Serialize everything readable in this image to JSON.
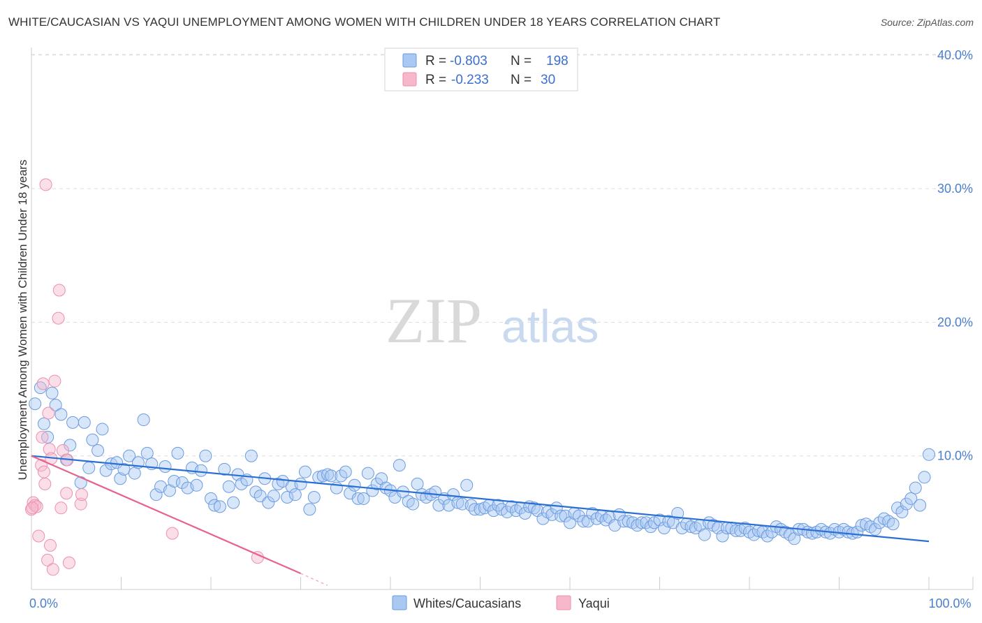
{
  "title": "WHITE/CAUCASIAN VS YAQUI UNEMPLOYMENT AMONG WOMEN WITH CHILDREN UNDER 18 YEARS CORRELATION CHART",
  "source": "Source: ZipAtlas.com",
  "watermark": {
    "zip": "ZIP",
    "atlas": "atlas"
  },
  "colors": {
    "blue_fill": "#a9c8f2",
    "blue_stroke": "#6b9be0",
    "blue_line": "#2a6fd4",
    "pink_fill": "#f7b8cb",
    "pink_stroke": "#ec8fae",
    "pink_line": "#e8628f",
    "tick_text": "#4a7fcf",
    "grid": "#dddddd"
  },
  "legend": {
    "rows": [
      {
        "r_label": "R =",
        "r_value": "-0.803",
        "n_label": "N =",
        "n_value": "198",
        "color": "blue"
      },
      {
        "r_label": "R =",
        "r_value": "-0.233",
        "n_label": "N =",
        "n_value": "30",
        "color": "pink"
      }
    ]
  },
  "bottom_legend": [
    {
      "label": "Whites/Caucasians",
      "color": "blue"
    },
    {
      "label": "Yaqui",
      "color": "pink"
    }
  ],
  "chart_data": {
    "type": "scatter",
    "title": "WHITE/CAUCASIAN VS YAQUI UNEMPLOYMENT AMONG WOMEN WITH CHILDREN UNDER 18 YEARS CORRELATION CHART",
    "xlabel": "",
    "ylabel": "Unemployment Among Women with Children Under 18 years",
    "xlim": [
      0,
      100
    ],
    "ylim": [
      0,
      42
    ],
    "x_tick_labels": [
      {
        "value": 0,
        "label": "0.0%"
      },
      {
        "value": 100,
        "label": "100.0%"
      }
    ],
    "y_tick_labels": [
      {
        "value": 10,
        "label": "10.0%"
      },
      {
        "value": 20,
        "label": "20.0%"
      },
      {
        "value": 30,
        "label": "30.0%"
      },
      {
        "value": 40,
        "label": "40.0%"
      }
    ],
    "series": [
      {
        "name": "Whites/Caucasians",
        "color": "blue",
        "trend": {
          "x": [
            0,
            100
          ],
          "y": [
            10.0,
            3.6
          ]
        },
        "points": [
          [
            0.4,
            13.9
          ],
          [
            1.0,
            15.1
          ],
          [
            1.4,
            12.4
          ],
          [
            1.8,
            11.4
          ],
          [
            2.3,
            14.7
          ],
          [
            2.7,
            13.8
          ],
          [
            3.3,
            13.1
          ],
          [
            3.9,
            9.7
          ],
          [
            4.3,
            10.8
          ],
          [
            4.6,
            12.5
          ],
          [
            5.5,
            8.0
          ],
          [
            5.9,
            12.5
          ],
          [
            6.4,
            9.1
          ],
          [
            6.8,
            11.2
          ],
          [
            7.4,
            10.4
          ],
          [
            7.9,
            12.0
          ],
          [
            8.3,
            8.9
          ],
          [
            8.9,
            9.4
          ],
          [
            9.5,
            9.5
          ],
          [
            9.9,
            8.3
          ],
          [
            10.3,
            9.0
          ],
          [
            10.9,
            10.0
          ],
          [
            11.5,
            8.7
          ],
          [
            11.9,
            9.5
          ],
          [
            12.5,
            12.7
          ],
          [
            12.9,
            10.2
          ],
          [
            13.4,
            9.4
          ],
          [
            13.9,
            7.1
          ],
          [
            14.4,
            7.7
          ],
          [
            14.9,
            9.2
          ],
          [
            15.4,
            7.4
          ],
          [
            15.9,
            8.1
          ],
          [
            16.3,
            10.2
          ],
          [
            16.8,
            8.0
          ],
          [
            17.4,
            7.6
          ],
          [
            17.9,
            9.1
          ],
          [
            18.4,
            7.8
          ],
          [
            18.9,
            8.9
          ],
          [
            19.4,
            10.0
          ],
          [
            20.0,
            6.8
          ],
          [
            20.4,
            6.3
          ],
          [
            21.0,
            6.2
          ],
          [
            21.5,
            9.0
          ],
          [
            22.0,
            7.7
          ],
          [
            22.5,
            6.5
          ],
          [
            23.0,
            8.6
          ],
          [
            23.4,
            7.9
          ],
          [
            24.0,
            8.2
          ],
          [
            24.5,
            10.0
          ],
          [
            25.0,
            7.3
          ],
          [
            25.5,
            7.0
          ],
          [
            26.0,
            8.3
          ],
          [
            26.4,
            6.5
          ],
          [
            27.0,
            7.0
          ],
          [
            27.5,
            7.9
          ],
          [
            28.0,
            8.1
          ],
          [
            28.5,
            6.9
          ],
          [
            29.0,
            7.7
          ],
          [
            29.4,
            7.1
          ],
          [
            30.0,
            7.9
          ],
          [
            30.5,
            8.8
          ],
          [
            31.0,
            6.0
          ],
          [
            31.5,
            6.9
          ],
          [
            32.0,
            8.4
          ],
          [
            32.5,
            8.5
          ],
          [
            33.0,
            8.6
          ],
          [
            33.4,
            8.5
          ],
          [
            34.0,
            7.6
          ],
          [
            34.5,
            8.5
          ],
          [
            35.0,
            8.8
          ],
          [
            35.5,
            7.2
          ],
          [
            36.0,
            7.8
          ],
          [
            36.4,
            6.8
          ],
          [
            37.0,
            6.8
          ],
          [
            37.5,
            8.7
          ],
          [
            38.0,
            7.4
          ],
          [
            38.5,
            7.9
          ],
          [
            39.0,
            8.3
          ],
          [
            39.5,
            7.6
          ],
          [
            40.0,
            7.4
          ],
          [
            40.5,
            6.9
          ],
          [
            41.0,
            9.3
          ],
          [
            41.4,
            7.3
          ],
          [
            42.0,
            6.6
          ],
          [
            42.5,
            6.4
          ],
          [
            43.0,
            7.9
          ],
          [
            43.5,
            7.1
          ],
          [
            44.0,
            6.9
          ],
          [
            44.5,
            7.1
          ],
          [
            45.0,
            7.3
          ],
          [
            45.4,
            6.3
          ],
          [
            46.0,
            6.8
          ],
          [
            46.5,
            6.3
          ],
          [
            47.0,
            7.1
          ],
          [
            47.5,
            6.5
          ],
          [
            48.0,
            6.4
          ],
          [
            48.5,
            7.8
          ],
          [
            49.0,
            6.3
          ],
          [
            49.4,
            6.0
          ],
          [
            50.0,
            6.0
          ],
          [
            50.5,
            6.1
          ],
          [
            51.0,
            6.3
          ],
          [
            51.5,
            5.9
          ],
          [
            52.0,
            6.3
          ],
          [
            52.4,
            6.0
          ],
          [
            53.0,
            5.8
          ],
          [
            53.5,
            6.2
          ],
          [
            54.0,
            5.9
          ],
          [
            54.5,
            6.1
          ],
          [
            55.0,
            5.7
          ],
          [
            55.5,
            6.2
          ],
          [
            56.0,
            6.1
          ],
          [
            56.4,
            5.9
          ],
          [
            57.0,
            5.3
          ],
          [
            57.5,
            5.8
          ],
          [
            58.0,
            5.6
          ],
          [
            58.5,
            6.1
          ],
          [
            59.0,
            5.5
          ],
          [
            59.5,
            5.5
          ],
          [
            60.0,
            5.0
          ],
          [
            60.5,
            5.7
          ],
          [
            61.0,
            5.5
          ],
          [
            61.5,
            5.1
          ],
          [
            62.0,
            5.1
          ],
          [
            62.5,
            5.7
          ],
          [
            63.0,
            5.3
          ],
          [
            63.5,
            5.5
          ],
          [
            64.0,
            5.2
          ],
          [
            64.4,
            5.4
          ],
          [
            65.0,
            4.8
          ],
          [
            65.5,
            5.6
          ],
          [
            66.0,
            5.1
          ],
          [
            66.5,
            5.1
          ],
          [
            67.0,
            5.0
          ],
          [
            67.5,
            4.8
          ],
          [
            68.0,
            5.0
          ],
          [
            68.5,
            5.0
          ],
          [
            69.0,
            4.7
          ],
          [
            69.4,
            5.0
          ],
          [
            70.0,
            5.2
          ],
          [
            70.5,
            4.6
          ],
          [
            71.0,
            5.1
          ],
          [
            71.5,
            5.0
          ],
          [
            72.0,
            5.7
          ],
          [
            72.5,
            4.6
          ],
          [
            73.0,
            4.9
          ],
          [
            73.5,
            4.7
          ],
          [
            74.0,
            4.6
          ],
          [
            74.5,
            4.8
          ],
          [
            75.0,
            4.1
          ],
          [
            75.5,
            5.0
          ],
          [
            76.0,
            4.8
          ],
          [
            76.5,
            4.6
          ],
          [
            77.0,
            4.0
          ],
          [
            77.5,
            4.6
          ],
          [
            78.0,
            4.6
          ],
          [
            78.5,
            4.4
          ],
          [
            79.0,
            4.4
          ],
          [
            79.5,
            4.6
          ],
          [
            80.0,
            4.3
          ],
          [
            80.5,
            4.1
          ],
          [
            81.0,
            4.4
          ],
          [
            81.5,
            4.3
          ],
          [
            82.0,
            4.0
          ],
          [
            82.5,
            4.3
          ],
          [
            83.0,
            4.7
          ],
          [
            83.5,
            4.5
          ],
          [
            84.0,
            4.3
          ],
          [
            84.5,
            4.1
          ],
          [
            85.0,
            3.8
          ],
          [
            85.5,
            4.5
          ],
          [
            86.0,
            4.5
          ],
          [
            86.5,
            4.3
          ],
          [
            87.0,
            4.2
          ],
          [
            87.5,
            4.3
          ],
          [
            88.0,
            4.5
          ],
          [
            88.5,
            4.3
          ],
          [
            89.0,
            4.2
          ],
          [
            89.5,
            4.5
          ],
          [
            90.0,
            4.3
          ],
          [
            90.5,
            4.5
          ],
          [
            91.0,
            4.3
          ],
          [
            91.5,
            4.2
          ],
          [
            92.0,
            4.3
          ],
          [
            92.5,
            4.8
          ],
          [
            93.0,
            4.9
          ],
          [
            93.5,
            4.7
          ],
          [
            94.0,
            4.5
          ],
          [
            94.5,
            5.0
          ],
          [
            95.0,
            5.3
          ],
          [
            95.5,
            5.1
          ],
          [
            96.0,
            4.9
          ],
          [
            96.5,
            6.1
          ],
          [
            97.0,
            5.8
          ],
          [
            97.5,
            6.4
          ],
          [
            98.0,
            6.8
          ],
          [
            98.5,
            7.6
          ],
          [
            99.0,
            6.3
          ],
          [
            99.5,
            8.4
          ],
          [
            100.0,
            10.1
          ]
        ]
      },
      {
        "name": "Yaqui",
        "color": "pink",
        "trend": {
          "x": [
            0,
            30,
            33
          ],
          "y": [
            10.0,
            1.2,
            0.3
          ]
        },
        "points": [
          [
            0.0,
            6.0
          ],
          [
            0.2,
            6.5
          ],
          [
            0.4,
            6.3
          ],
          [
            0.6,
            6.2
          ],
          [
            0.8,
            4.0
          ],
          [
            1.1,
            9.3
          ],
          [
            1.2,
            11.4
          ],
          [
            1.3,
            15.4
          ],
          [
            1.4,
            8.8
          ],
          [
            1.5,
            7.9
          ],
          [
            1.6,
            30.3
          ],
          [
            1.8,
            2.2
          ],
          [
            1.9,
            13.2
          ],
          [
            2.0,
            10.5
          ],
          [
            2.1,
            3.3
          ],
          [
            2.2,
            9.8
          ],
          [
            2.4,
            1.5
          ],
          [
            2.6,
            15.6
          ],
          [
            3.0,
            20.3
          ],
          [
            3.1,
            22.4
          ],
          [
            3.3,
            6.1
          ],
          [
            3.5,
            10.4
          ],
          [
            3.9,
            7.2
          ],
          [
            4.0,
            9.7
          ],
          [
            4.2,
            2.0
          ],
          [
            5.5,
            6.4
          ],
          [
            5.6,
            7.1
          ],
          [
            15.7,
            4.2
          ],
          [
            25.2,
            2.4
          ],
          [
            0.1,
            6.1
          ]
        ]
      }
    ]
  }
}
